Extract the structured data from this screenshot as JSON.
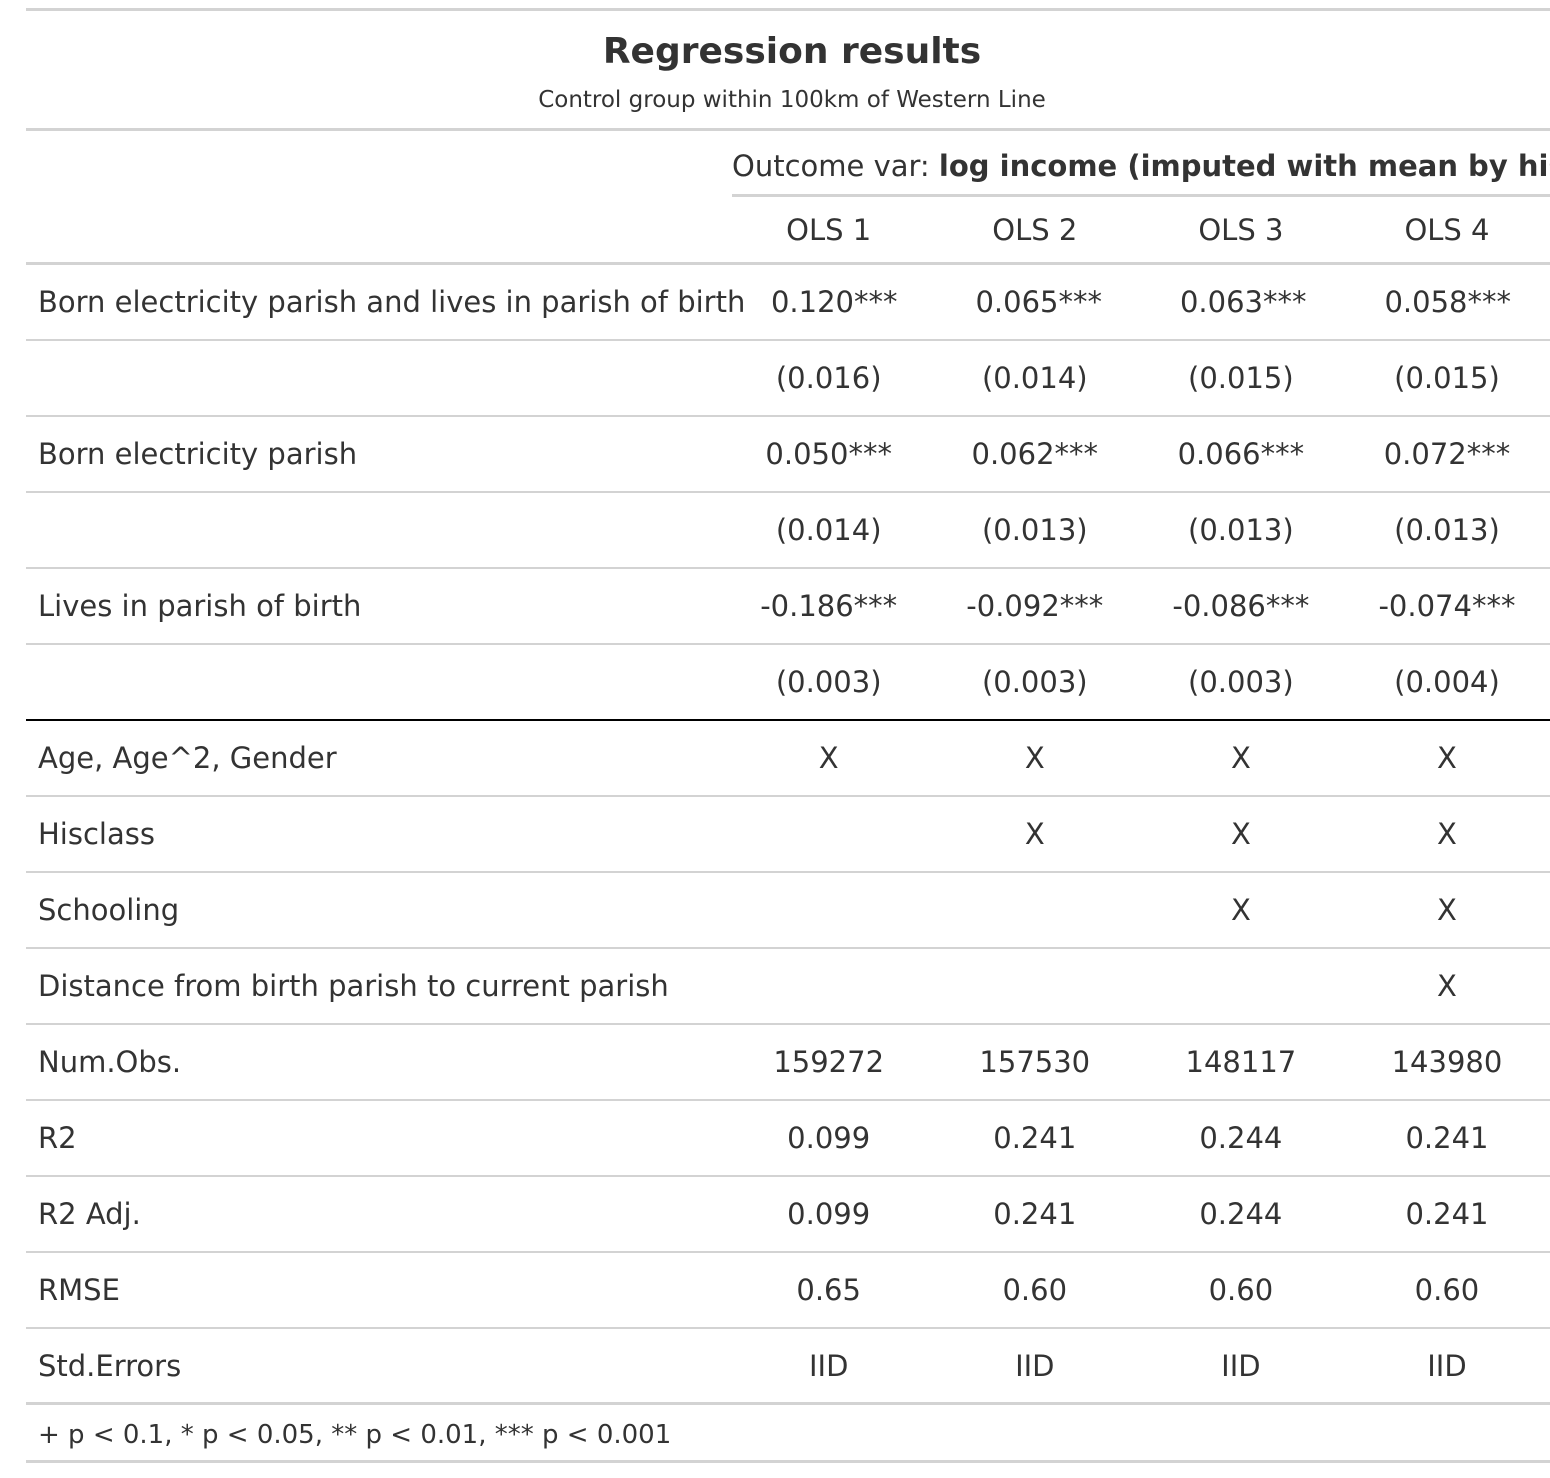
{
  "title": "Regression results",
  "subtitle": "Control group within 100km of Western Line",
  "spanner": {
    "prefix": "Outcome var: ",
    "bold": "log income (imputed with mean by hisco)"
  },
  "columns": [
    "OLS 1",
    "OLS 2",
    "OLS 3",
    "OLS 4"
  ],
  "rows": [
    {
      "label": "Born electricity parish and lives in parish of birth",
      "values": [
        "0.120***",
        "0.065***",
        "0.063***",
        "0.058***"
      ]
    },
    {
      "label": "",
      "values": [
        "(0.016)",
        "(0.014)",
        "(0.015)",
        "(0.015)"
      ]
    },
    {
      "label": "Born electricity parish",
      "values": [
        "0.050***",
        "0.062***",
        "0.066***",
        "0.072***"
      ]
    },
    {
      "label": "",
      "values": [
        "(0.014)",
        "(0.013)",
        "(0.013)",
        "(0.013)"
      ]
    },
    {
      "label": "Lives in parish of birth",
      "values": [
        "-0.186***",
        "-0.092***",
        "-0.086***",
        "-0.074***"
      ]
    },
    {
      "label": "",
      "values": [
        "(0.003)",
        "(0.003)",
        "(0.003)",
        "(0.004)"
      ]
    },
    {
      "label": "Age, Age^2, Gender",
      "values": [
        "X",
        "X",
        "X",
        "X"
      ]
    },
    {
      "label": "Hisclass",
      "values": [
        "",
        "X",
        "X",
        "X"
      ]
    },
    {
      "label": "Schooling",
      "values": [
        "",
        "",
        "X",
        "X"
      ]
    },
    {
      "label": "Distance from birth parish to current parish",
      "values": [
        "",
        "",
        "",
        "X"
      ]
    },
    {
      "label": "Num.Obs.",
      "values": [
        "159272",
        "157530",
        "148117",
        "143980"
      ]
    },
    {
      "label": "R2",
      "values": [
        "0.099",
        "0.241",
        "0.244",
        "0.241"
      ]
    },
    {
      "label": "R2 Adj.",
      "values": [
        "0.099",
        "0.241",
        "0.244",
        "0.241"
      ]
    },
    {
      "label": "RMSE",
      "values": [
        "0.65",
        "0.60",
        "0.60",
        "0.60"
      ]
    },
    {
      "label": "Std.Errors",
      "values": [
        "IID",
        "IID",
        "IID",
        "IID"
      ]
    }
  ],
  "footnote": "+ p < 0.1, * p < 0.05, ** p < 0.01, *** p < 0.001"
}
